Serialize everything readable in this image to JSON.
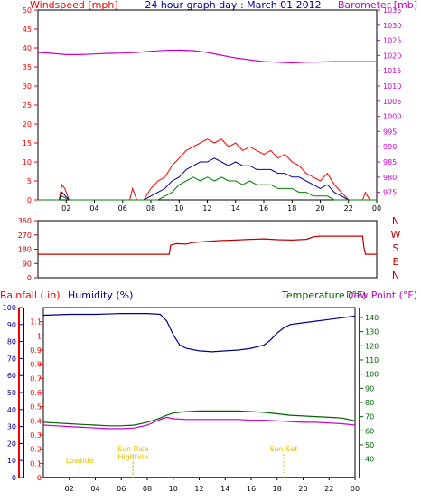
{
  "panels": {
    "top": {
      "title": "24 hour graph day : March 01 2012",
      "left_label": "Windspeed [mph]",
      "right_label": "Barometer [mb]"
    },
    "direction": {
      "compass_labels": [
        "N",
        "W",
        "S",
        "E",
        "N"
      ]
    },
    "bottom": {
      "rainfall_label": "Rainfall (.in)",
      "humidity_label": "Humidity (%)",
      "temperature_label": "Temperature (°F)",
      "dewpoint_label": "Dew Point (°F)"
    }
  },
  "colors": {
    "frame": "#000000",
    "wind_gust": "#ff0000",
    "wind_avg": "#0000a0",
    "wind_low": "#008000",
    "barometer": "#cc00cc",
    "direction": "#c00000",
    "humidity": "#000090",
    "temperature": "#006400",
    "dewpoint": "#cc00cc",
    "rain": "#ff0000",
    "astro": "#e0c000"
  },
  "chart_data": [
    {
      "type": "line",
      "name": "wind-barometer",
      "x_ticks": [
        "02",
        "04",
        "06",
        "08",
        "10",
        "12",
        "14",
        "16",
        "18",
        "20",
        "22",
        "00"
      ],
      "xlim": [
        0,
        24
      ],
      "left_axis": {
        "ticks": [
          0,
          5,
          10,
          15,
          20,
          25,
          30,
          35,
          40,
          45,
          50
        ],
        "ylim": [
          0,
          50
        ]
      },
      "right_axis": {
        "ticks": [
          975,
          980,
          985,
          990,
          995,
          1000,
          1005,
          1010,
          1015,
          1020,
          1025,
          1030,
          1035
        ],
        "ylim": [
          972.5,
          1035
        ]
      },
      "series": [
        {
          "key": "gust",
          "axis": "left",
          "x": [
            0,
            1.5,
            1.7,
            1.9,
            2.2,
            6.5,
            6.7,
            7.0,
            7.5,
            8.0,
            8.5,
            9.0,
            9.5,
            10.0,
            10.5,
            11.0,
            11.5,
            12.0,
            12.5,
            13.0,
            13.5,
            14.0,
            14.5,
            15.0,
            15.5,
            16.0,
            16.5,
            17.0,
            17.5,
            18.0,
            18.5,
            19.0,
            19.5,
            20.0,
            20.5,
            21.0,
            21.5,
            22.0,
            22.5,
            23.0,
            23.2,
            23.5,
            24.0
          ],
          "y": [
            0,
            0,
            4,
            3,
            0,
            0,
            3,
            0,
            0,
            3,
            5,
            6,
            9,
            11,
            13,
            14,
            15,
            16,
            15,
            16,
            14,
            15,
            13,
            14,
            13,
            12,
            13,
            11,
            12,
            10,
            9,
            7,
            6,
            5,
            7,
            4,
            2,
            0,
            0,
            0,
            2,
            0,
            0
          ]
        },
        {
          "key": "avg",
          "axis": "left",
          "x": [
            0,
            1.5,
            1.7,
            2.2,
            7.5,
            8.0,
            8.5,
            9.0,
            9.5,
            10.0,
            10.5,
            11.0,
            11.5,
            12.0,
            12.5,
            13.0,
            13.5,
            14.0,
            14.5,
            15.0,
            15.5,
            16.0,
            16.5,
            17.0,
            17.5,
            18.0,
            18.5,
            19.0,
            19.5,
            20.0,
            20.5,
            21.0,
            21.5,
            22.0,
            24.0
          ],
          "y": [
            0,
            0,
            2,
            0,
            0,
            1,
            2,
            3,
            5,
            6,
            8,
            9,
            10,
            10,
            11,
            10,
            9,
            10,
            9,
            9,
            8,
            8,
            8,
            7,
            7,
            6,
            6,
            5,
            4,
            3,
            4,
            2,
            1,
            0,
            0
          ]
        },
        {
          "key": "low",
          "axis": "left",
          "x": [
            0,
            1.5,
            1.7,
            2.2,
            8.5,
            9.0,
            9.5,
            10.0,
            10.5,
            11.0,
            11.5,
            12.0,
            12.5,
            13.0,
            13.5,
            14.0,
            14.5,
            15.0,
            15.5,
            16.0,
            16.5,
            17.0,
            17.5,
            18.0,
            18.5,
            19.0,
            19.5,
            20.0,
            20.5,
            21.0,
            24.0
          ],
          "y": [
            0,
            0,
            1,
            0,
            0,
            1,
            2,
            4,
            5,
            6,
            5,
            6,
            5,
            6,
            5,
            5,
            4,
            5,
            4,
            4,
            4,
            3,
            3,
            3,
            2,
            2,
            1,
            1,
            1,
            0,
            0
          ]
        },
        {
          "key": "barometer",
          "axis": "right",
          "x": [
            0,
            1,
            2,
            3,
            4,
            5,
            6,
            7,
            8,
            9,
            10,
            11,
            12,
            13,
            14,
            15,
            16,
            17,
            18,
            19,
            20,
            21,
            22,
            23,
            24
          ],
          "y": [
            1021.0,
            1020.7,
            1020.3,
            1020.3,
            1020.5,
            1020.7,
            1020.8,
            1021.0,
            1021.4,
            1021.7,
            1021.8,
            1021.6,
            1021.0,
            1020.1,
            1019.2,
            1018.6,
            1018.0,
            1017.8,
            1017.6,
            1017.8,
            1017.9,
            1018.0,
            1018.0,
            1018.0,
            1018.0
          ]
        }
      ]
    },
    {
      "type": "line",
      "name": "wind-direction",
      "y_ticks": [
        0,
        90,
        180,
        270,
        360
      ],
      "ylim": [
        0,
        360
      ],
      "xlim": [
        0,
        24
      ],
      "series": [
        {
          "key": "direction",
          "x": [
            0,
            2,
            4,
            6,
            8,
            9.3,
            9.4,
            9.8,
            10.5,
            11,
            12,
            13,
            14,
            15,
            16,
            17,
            18,
            19,
            19.5,
            20,
            21,
            22,
            23,
            23.1,
            23.2,
            24
          ],
          "y": [
            148,
            148,
            148,
            148,
            148,
            148,
            205,
            215,
            212,
            222,
            230,
            235,
            238,
            242,
            245,
            240,
            238,
            242,
            258,
            262,
            262,
            262,
            262,
            190,
            148,
            148
          ]
        }
      ]
    },
    {
      "type": "line",
      "name": "humidity-temperature",
      "x_ticks": [
        "02",
        "04",
        "06",
        "08",
        "10",
        "12",
        "14",
        "16",
        "18",
        "20",
        "22",
        "00"
      ],
      "xlim": [
        0,
        24
      ],
      "rain_axis": {
        "ticks": [
          0,
          0.1,
          0.2,
          0.3,
          0.4,
          0.5,
          0.6,
          0.7,
          0.8,
          0.9,
          1,
          1.1
        ],
        "ylim": [
          0,
          1.2
        ]
      },
      "humidity_axis": {
        "ticks": [
          0,
          10,
          20,
          30,
          40,
          50,
          60,
          70,
          80,
          90,
          100
        ],
        "ylim": [
          0,
          100
        ]
      },
      "temperature_axis": {
        "ticks": [
          40,
          50,
          60,
          70,
          80,
          90,
          100,
          110,
          120,
          130,
          140
        ],
        "ylim": [
          27,
          147
        ]
      },
      "series": [
        {
          "key": "humidity",
          "axis": "humidity",
          "x": [
            0,
            2,
            4,
            6,
            8,
            9,
            9.5,
            10,
            10.5,
            11,
            12,
            13,
            14,
            15,
            16,
            17,
            17.5,
            18,
            18.5,
            19,
            20,
            21,
            22,
            23,
            24
          ],
          "y": [
            95.5,
            96,
            96,
            96.5,
            96.5,
            96,
            92,
            84,
            78,
            76,
            74.5,
            74,
            74.5,
            75,
            76,
            78,
            81,
            85,
            88,
            90,
            91,
            92,
            93,
            94,
            95
          ]
        },
        {
          "key": "temperature",
          "axis": "temperature",
          "x": [
            0,
            1,
            2,
            3,
            4,
            5,
            6,
            7,
            8,
            8.5,
            9,
            9.5,
            10,
            11,
            12,
            13,
            14,
            15,
            16,
            17,
            18,
            19,
            20,
            21,
            22,
            23,
            24
          ],
          "y": [
            66,
            65.5,
            65,
            64.5,
            64,
            63.5,
            63.5,
            64,
            66,
            67.5,
            69,
            71,
            72.5,
            73.5,
            74,
            74,
            74,
            74,
            73.5,
            73,
            72,
            71,
            70.5,
            70,
            69.5,
            69,
            67
          ]
        },
        {
          "key": "dewpoint",
          "axis": "temperature",
          "x": [
            0,
            1,
            2,
            3,
            4,
            5,
            6,
            7,
            8,
            8.5,
            9,
            9.5,
            10,
            11,
            12,
            13,
            14,
            15,
            16,
            17,
            18,
            19,
            20,
            21,
            22,
            23,
            24
          ],
          "y": [
            64,
            63.5,
            63,
            62.5,
            62,
            61.5,
            61.5,
            62,
            64,
            66,
            68,
            69.5,
            68.5,
            68,
            68,
            68,
            68,
            68,
            67.5,
            67.5,
            67,
            66.5,
            66,
            66,
            65.5,
            65,
            64
          ]
        },
        {
          "key": "rain",
          "axis": "rain",
          "x": [
            0,
            24
          ],
          "y": [
            0,
            0
          ]
        }
      ],
      "annotations": [
        {
          "label": "Lowtide",
          "x": 2.8
        },
        {
          "label": "Sun Rise",
          "x": 6.9
        },
        {
          "label": "Hightide",
          "x": 6.9
        },
        {
          "label": "Sun Set",
          "x": 18.5
        }
      ]
    }
  ]
}
